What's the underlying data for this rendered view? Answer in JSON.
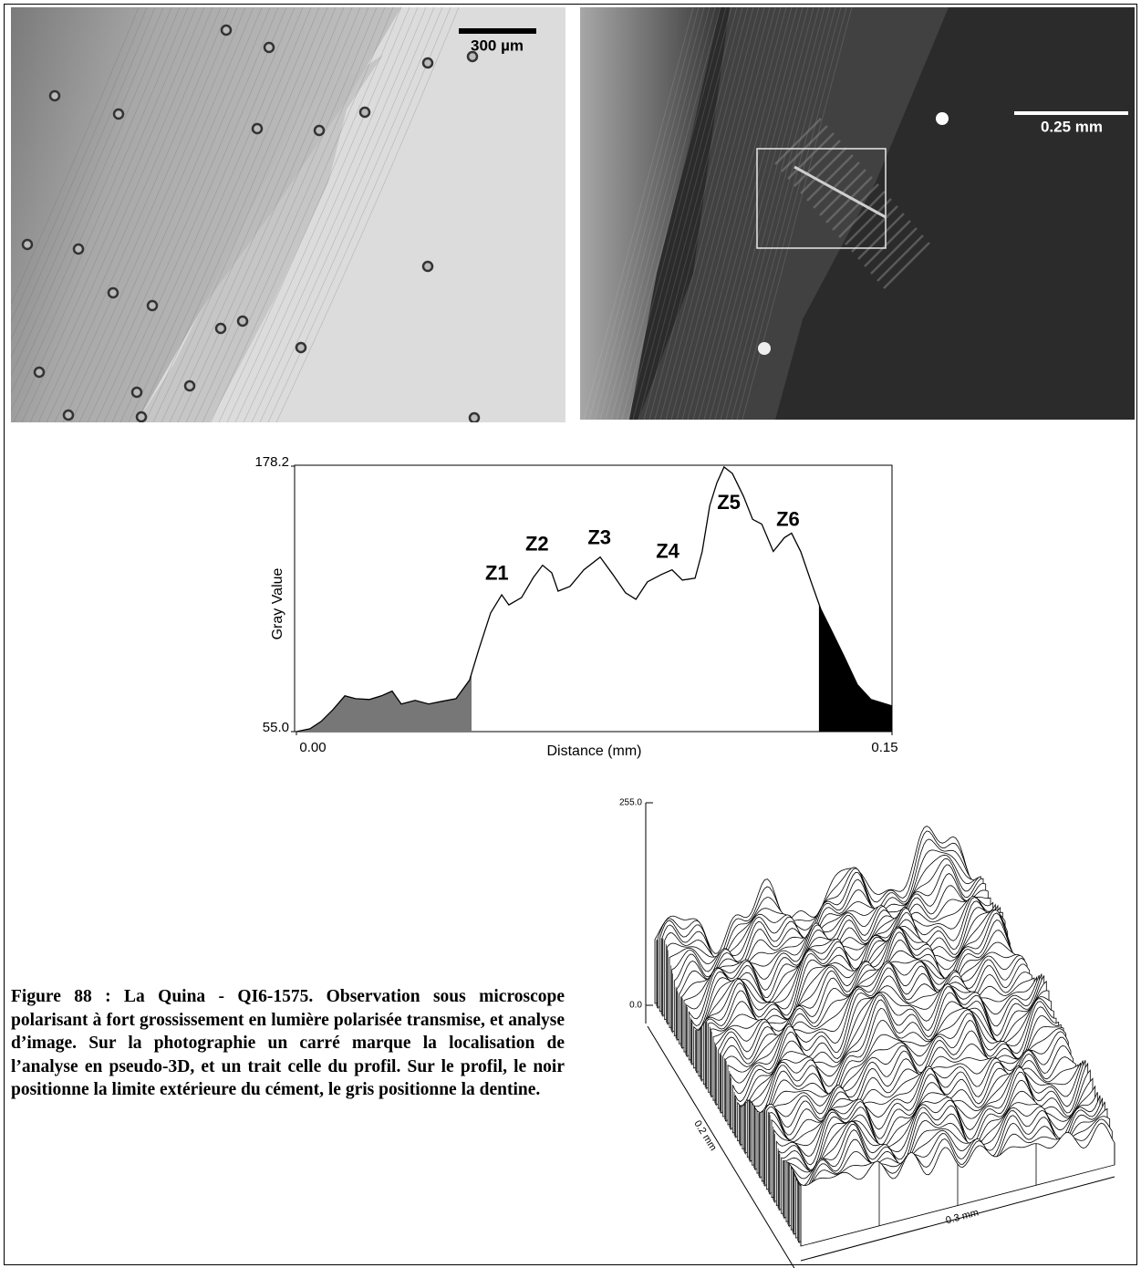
{
  "photos": {
    "left": {
      "scale_bar": "300 µm"
    },
    "right": {
      "scale_bar": "0.25 mm"
    }
  },
  "chart_data": {
    "type": "line",
    "ylabel": "Gray Value",
    "xlabel": "Distance (mm)",
    "color": "#000000",
    "x": [
      0,
      0.0034,
      0.0062,
      0.0092,
      0.0122,
      0.0149,
      0.0184,
      0.0214,
      0.0241,
      0.0264,
      0.0299,
      0.0333,
      0.0368,
      0.0402,
      0.0436,
      0.0459,
      0.0489,
      0.0517,
      0.0535,
      0.0567,
      0.0597,
      0.062,
      0.0643,
      0.0659,
      0.0689,
      0.0724,
      0.0765,
      0.0797,
      0.0829,
      0.0855,
      0.0884,
      0.0919,
      0.0946,
      0.0972,
      0.1004,
      0.1022,
      0.1041,
      0.1059,
      0.1077,
      0.1098,
      0.1126,
      0.1149,
      0.1172,
      0.1201,
      0.1229,
      0.1247,
      0.127,
      0.1298,
      0.1321,
      0.1344,
      0.1378,
      0.1413,
      0.1447,
      0.15
    ],
    "values": [
      55,
      56.3,
      59.7,
      65.2,
      71.6,
      70.3,
      69.9,
      71.6,
      73.8,
      67.8,
      69.5,
      67.8,
      69.1,
      70.3,
      78.9,
      92.9,
      110,
      118.5,
      113.8,
      117.2,
      126.6,
      132.2,
      128.7,
      120.2,
      122.4,
      130.1,
      136,
      127.9,
      119.4,
      116.4,
      124.5,
      127.9,
      130.1,
      125.3,
      126.2,
      138.6,
      159.9,
      170.5,
      177.8,
      174.8,
      164.2,
      153.5,
      151.3,
      138.6,
      145,
      147.1,
      138.6,
      123.6,
      111.7,
      103.2,
      90.4,
      76.7,
      69.9,
      66.9
    ],
    "xlim": [
      0,
      0.15
    ],
    "ylim": [
      55,
      178.2
    ],
    "xticks": [
      {
        "value": 0,
        "label": "0.00"
      },
      0.15
    ],
    "yticks": [
      {
        "value": 55,
        "label": "55.0"
      },
      178.2
    ],
    "shaded_regions": [
      {
        "color": "#777777",
        "xlim": [
          0,
          0.0441
        ]
      },
      {
        "color": "#000000",
        "xlim": [
          0.1316,
          0.15
        ]
      }
    ],
    "annotations": [
      {
        "text": "Z1",
        "x": 0.0505,
        "y": 127.9
      },
      {
        "text": "Z2",
        "x": 0.0606,
        "y": 141.5
      },
      {
        "text": "Z3",
        "x": 0.0763,
        "y": 144.5
      },
      {
        "text": "Z4",
        "x": 0.0935,
        "y": 138.1
      },
      {
        "text": "Z5",
        "x": 0.1089,
        "y": 160.7
      },
      {
        "text": "Z6",
        "x": 0.1238,
        "y": 153.0
      }
    ]
  },
  "surface_plot": {
    "zticks": [
      {
        "value": 255,
        "label": "255.0"
      },
      {
        "value": 0,
        "label": "0.0"
      }
    ],
    "depth_label": "0.2 mm",
    "width_label": "0.3 mm"
  },
  "caption": "Figure 88 : La Quina - QI6-1575. Observation sous microscope polarisant à fort grossissement en lumière polarisée transmise, et analyse d’image. Sur la photographie un carré marque la localisation de l’analyse en pseudo-3D, et un trait celle du profil. Sur le profil, le noir positionne la limite extérieure du cément, le gris positionne la dentine."
}
